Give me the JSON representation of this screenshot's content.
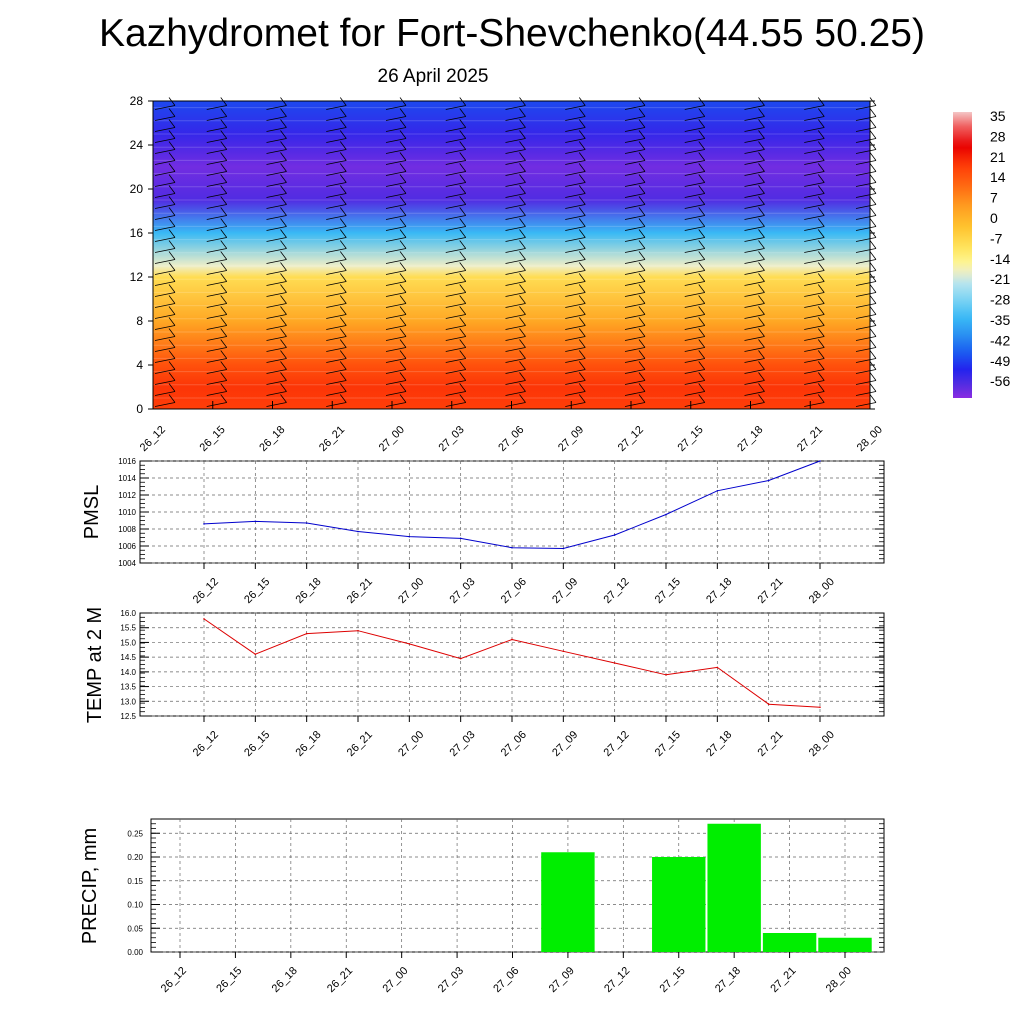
{
  "title": "Kazhydromet for Fort-Shevchenko(44.55 50.25)",
  "subtitle": "26 April 2025",
  "chart_data": [
    {
      "type": "heatmap",
      "title": "Kazhydromet for Fort-Shevchenko(44.55 50.25)",
      "subtitle": "26 April 2025",
      "x_ticks": [
        "26_12",
        "26_15",
        "26_18",
        "26_21",
        "27_00",
        "27_03",
        "27_06",
        "27_09",
        "27_12",
        "27_15",
        "27_18",
        "27_21",
        "28_00"
      ],
      "y_ticks": [
        0,
        4,
        8,
        12,
        16,
        20,
        24,
        28
      ],
      "ylim": [
        0,
        28
      ],
      "colorbar_labels": [
        "35",
        "28",
        "21",
        "14",
        "7",
        "0",
        "-7",
        "-14",
        "-21",
        "-28",
        "-35",
        "-42",
        "-49",
        "-56"
      ],
      "colorbar_range": [
        -60,
        40
      ],
      "overlay": "wind barbs",
      "value_profile": [
        {
          "y": 0,
          "value": 21
        },
        {
          "y": 2,
          "value": 22
        },
        {
          "y": 4,
          "value": 18
        },
        {
          "y": 8,
          "value": 5
        },
        {
          "y": 12,
          "value": -6
        },
        {
          "y": 13,
          "value": -16
        },
        {
          "y": 16,
          "value": -32
        },
        {
          "y": 19,
          "value": -55
        },
        {
          "y": 22,
          "value": -58
        },
        {
          "y": 25,
          "value": -52
        },
        {
          "y": 28,
          "value": -46
        }
      ]
    },
    {
      "type": "line",
      "ylabel": "PMSL",
      "categories": [
        "26_12",
        "26_15",
        "26_18",
        "26_21",
        "27_00",
        "27_03",
        "27_06",
        "27_09",
        "27_12",
        "27_15",
        "27_18",
        "27_21",
        "28_00"
      ],
      "values": [
        1008.6,
        1008.9,
        1008.7,
        1007.7,
        1007.1,
        1006.9,
        1005.8,
        1005.7,
        1007.3,
        1009.7,
        1012.5,
        1013.7,
        1016.0
      ],
      "ylim": [
        1004,
        1016
      ],
      "y_ticks": [
        1004,
        1006,
        1008,
        1010,
        1012,
        1014,
        1016
      ],
      "grid": true,
      "color": "#0000cc"
    },
    {
      "type": "line",
      "ylabel": "TEMP at 2 M",
      "categories": [
        "26_12",
        "26_15",
        "26_18",
        "26_21",
        "27_00",
        "27_03",
        "27_06",
        "27_09",
        "27_12",
        "27_15",
        "27_18",
        "27_21",
        "28_00"
      ],
      "values": [
        15.8,
        14.6,
        15.3,
        15.4,
        14.95,
        14.45,
        15.1,
        14.7,
        14.3,
        13.9,
        14.15,
        12.9,
        12.8
      ],
      "ylim": [
        12.5,
        16.0
      ],
      "y_ticks": [
        "12.5",
        "13.0",
        "13.5",
        "14.0",
        "14.5",
        "15.0",
        "15.5",
        "16.0"
      ],
      "grid": true,
      "color": "#dd0000"
    },
    {
      "type": "bar",
      "ylabel": "PRECIP, mm",
      "categories": [
        "26_12",
        "26_15",
        "26_18",
        "26_21",
        "27_00",
        "27_03",
        "27_06",
        "27_09",
        "27_12",
        "27_15",
        "27_18",
        "27_21",
        "28_00"
      ],
      "values": [
        0,
        0,
        0,
        0,
        0,
        0,
        0,
        0.21,
        0,
        0.2,
        0.27,
        0.04,
        0.03
      ],
      "ylim": [
        0,
        0.28
      ],
      "y_ticks": [
        "0.00",
        "0.05",
        "0.10",
        "0.15",
        "0.20",
        "0.25"
      ],
      "grid": true,
      "color": "#00ee00"
    }
  ]
}
